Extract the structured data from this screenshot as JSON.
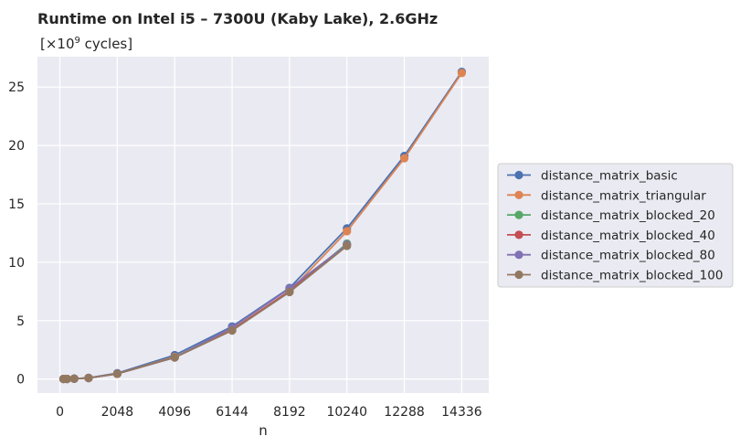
{
  "chart_data": {
    "type": "line",
    "title": "Runtime on Intel i5 – 7300U (Kaby Lake),  2.6GHz",
    "subtitle_prefix": "[×10",
    "subtitle_exp": "9",
    "subtitle_suffix": " cycles]",
    "xlabel": "n",
    "ylabel": "",
    "xlim": [
      -800,
      15300
    ],
    "ylim": [
      -1.2,
      27.6
    ],
    "xticks": [
      0,
      2048,
      4096,
      6144,
      8192,
      10240,
      12288,
      14336
    ],
    "xtick_labels": [
      "0",
      "2048",
      "4096",
      "6144",
      "8192",
      "10240",
      "12288",
      "14336"
    ],
    "yticks": [
      0,
      5,
      10,
      15,
      20,
      25
    ],
    "ytick_labels": [
      "0",
      "5",
      "10",
      "15",
      "20",
      "25"
    ],
    "grid": true,
    "legend_position": "center-right outside",
    "series": [
      {
        "name": "distance_matrix_basic",
        "color": "#4c72b0",
        "x": [
          128,
          256,
          512,
          1024,
          2048,
          4096,
          6144,
          8192,
          10240,
          12288,
          14336
        ],
        "y": [
          0.01,
          0.01,
          0.03,
          0.1,
          0.5,
          2.05,
          4.5,
          7.8,
          12.9,
          19.1,
          26.3
        ]
      },
      {
        "name": "distance_matrix_triangular",
        "color": "#dd8452",
        "x": [
          128,
          256,
          512,
          1024,
          2048,
          4096,
          6144,
          8192,
          10240,
          12288,
          14336
        ],
        "y": [
          0.01,
          0.01,
          0.03,
          0.09,
          0.45,
          1.9,
          4.25,
          7.5,
          12.65,
          18.9,
          26.2
        ]
      },
      {
        "name": "distance_matrix_blocked_20",
        "color": "#55a868",
        "x": [
          128,
          256,
          512,
          1024,
          2048,
          4096,
          6144,
          8192,
          10240
        ],
        "y": [
          0.01,
          0.01,
          0.03,
          0.09,
          0.45,
          1.85,
          4.2,
          7.5,
          11.6
        ]
      },
      {
        "name": "distance_matrix_blocked_40",
        "color": "#c44e52",
        "x": [
          128,
          256,
          512,
          1024,
          2048,
          4096,
          6144,
          8192,
          10240
        ],
        "y": [
          0.01,
          0.01,
          0.03,
          0.09,
          0.45,
          1.85,
          4.2,
          7.55,
          11.5
        ]
      },
      {
        "name": "distance_matrix_blocked_80",
        "color": "#8172b3",
        "x": [
          128,
          256,
          512,
          1024,
          2048,
          4096,
          6144,
          8192,
          10240
        ],
        "y": [
          0.01,
          0.01,
          0.03,
          0.09,
          0.45,
          1.85,
          4.4,
          7.75,
          11.5
        ]
      },
      {
        "name": "distance_matrix_blocked_100",
        "color": "#937860",
        "x": [
          128,
          256,
          512,
          1024,
          2048,
          4096,
          6144,
          8192,
          10240
        ],
        "y": [
          0.01,
          0.01,
          0.03,
          0.09,
          0.45,
          1.85,
          4.15,
          7.45,
          11.4
        ]
      }
    ]
  }
}
